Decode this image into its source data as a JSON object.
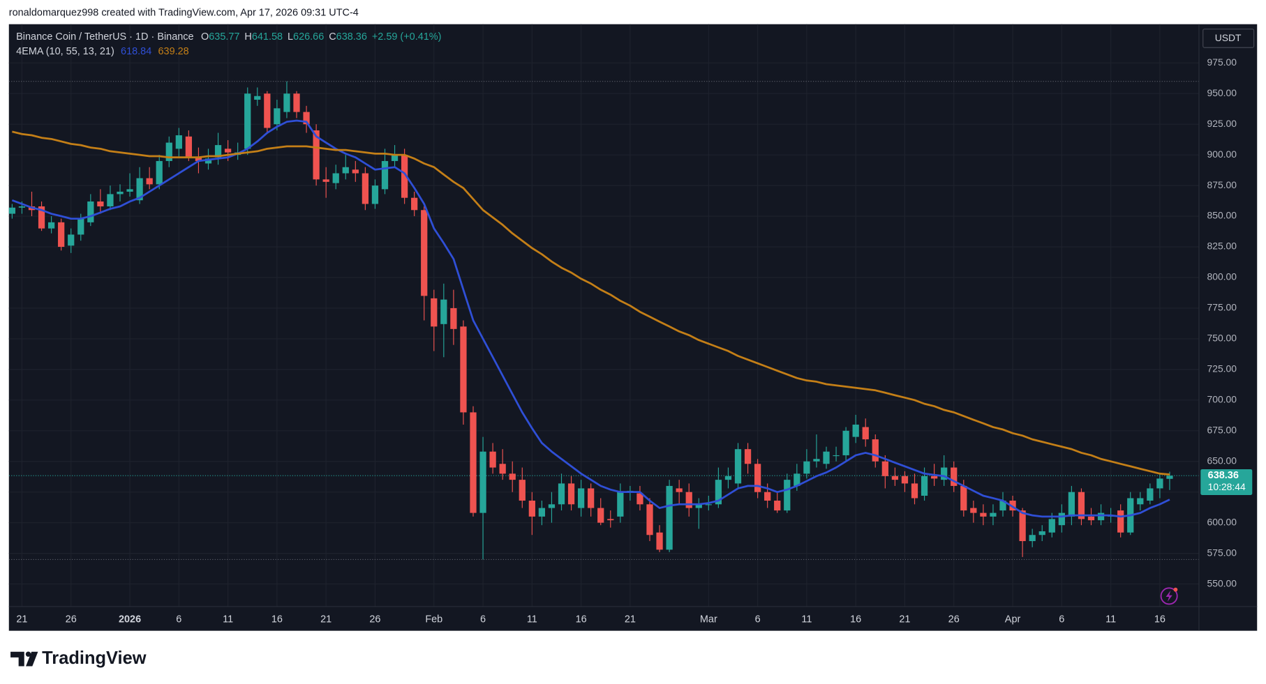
{
  "watermark": "ronaldomarquez998 created with TradingView.com, Apr 17, 2026 09:31 UTC-4",
  "logo": "TradingView",
  "chart_data": {
    "type": "candlestick",
    "title": "Binance Coin / TetherUS · 1D · Binance",
    "ohlc_labels": [
      "O",
      "H",
      "L",
      "C"
    ],
    "change": "+2.59 (+0.41%)",
    "indicator": "4EMA (10, 55, 13, 21)",
    "currency": "USDT",
    "countdown": "10:28:44",
    "up_color": "#26a69a",
    "down_color": "#ef5350",
    "grid": true,
    "ylim": [
      531.6,
      1006.6
    ],
    "yticks": [
      {
        "value": 550,
        "label": "550.00"
      },
      {
        "value": 575,
        "label": "575.00"
      },
      {
        "value": 600,
        "label": "600.00"
      },
      {
        "value": 625,
        "label": "625.00"
      },
      {
        "value": 650,
        "label": "650.00"
      },
      {
        "value": 675,
        "label": "675.00"
      },
      {
        "value": 700,
        "label": "700.00"
      },
      {
        "value": 725,
        "label": "725.00"
      },
      {
        "value": 750,
        "label": "750.00"
      },
      {
        "value": 775,
        "label": "775.00"
      },
      {
        "value": 800,
        "label": "800.00"
      },
      {
        "value": 825,
        "label": "825.00"
      },
      {
        "value": 850,
        "label": "850.00"
      },
      {
        "value": 875,
        "label": "875.00"
      },
      {
        "value": 900,
        "label": "900.00"
      },
      {
        "value": 925,
        "label": "925.00"
      },
      {
        "value": 950,
        "label": "950.00"
      },
      {
        "value": 975,
        "label": "975.00"
      }
    ],
    "categories": [
      null,
      "21",
      null,
      null,
      null,
      null,
      "26",
      null,
      null,
      null,
      null,
      null,
      "2026",
      null,
      null,
      null,
      null,
      "6",
      null,
      null,
      null,
      null,
      "11",
      null,
      null,
      null,
      null,
      "16",
      null,
      null,
      null,
      null,
      "21",
      null,
      null,
      null,
      null,
      "26",
      null,
      null,
      null,
      null,
      null,
      "Feb",
      null,
      null,
      null,
      null,
      "6",
      null,
      null,
      null,
      null,
      "11",
      null,
      null,
      null,
      null,
      "16",
      null,
      null,
      null,
      null,
      "21",
      null,
      null,
      null,
      null,
      null,
      null,
      null,
      "Mar",
      null,
      null,
      null,
      null,
      "6",
      null,
      null,
      null,
      null,
      "11",
      null,
      null,
      null,
      null,
      "16",
      null,
      null,
      null,
      null,
      "21",
      null,
      null,
      null,
      null,
      "26",
      null,
      null,
      null,
      null,
      null,
      "Apr",
      null,
      null,
      null,
      null,
      "6",
      null,
      null,
      null,
      null,
      "11",
      null,
      null,
      null,
      null,
      "16",
      null
    ],
    "ohlc": [
      [
        852,
        860,
        848,
        857
      ],
      [
        857,
        862,
        852,
        858
      ],
      [
        858,
        870,
        850,
        855
      ],
      [
        858,
        862,
        838,
        840
      ],
      [
        840,
        850,
        836,
        845
      ],
      [
        845,
        848,
        822,
        825
      ],
      [
        826,
        840,
        820,
        835
      ],
      [
        835,
        852,
        830,
        848
      ],
      [
        845,
        868,
        842,
        862
      ],
      [
        862,
        872,
        852,
        858
      ],
      [
        858,
        875,
        855,
        868
      ],
      [
        868,
        876,
        862,
        870
      ],
      [
        870,
        885,
        866,
        872
      ],
      [
        863,
        890,
        860,
        881
      ],
      [
        881,
        890,
        872,
        876
      ],
      [
        876,
        900,
        872,
        895
      ],
      [
        895,
        915,
        890,
        910
      ],
      [
        905,
        922,
        898,
        916
      ],
      [
        915,
        920,
        895,
        898
      ],
      [
        898,
        906,
        885,
        895
      ],
      [
        893,
        905,
        888,
        897
      ],
      [
        898,
        918,
        892,
        908
      ],
      [
        905,
        912,
        895,
        902
      ],
      [
        900,
        910,
        896,
        902
      ],
      [
        905,
        955,
        900,
        950
      ],
      [
        945,
        955,
        940,
        948
      ],
      [
        950,
        952,
        918,
        922
      ],
      [
        925,
        945,
        920,
        938
      ],
      [
        935,
        960,
        930,
        950
      ],
      [
        950,
        952,
        930,
        935
      ],
      [
        935,
        940,
        918,
        925
      ],
      [
        920,
        925,
        875,
        880
      ],
      [
        880,
        890,
        865,
        878
      ],
      [
        877,
        892,
        872,
        885
      ],
      [
        885,
        900,
        880,
        890
      ],
      [
        888,
        895,
        878,
        885
      ],
      [
        885,
        890,
        855,
        860
      ],
      [
        860,
        880,
        856,
        875
      ],
      [
        872,
        905,
        868,
        895
      ],
      [
        895,
        908,
        890,
        900
      ],
      [
        900,
        905,
        860,
        865
      ],
      [
        865,
        870,
        850,
        855
      ],
      [
        855,
        858,
        765,
        785
      ],
      [
        783,
        790,
        740,
        760
      ],
      [
        762,
        795,
        735,
        782
      ],
      [
        775,
        790,
        745,
        758
      ],
      [
        760,
        765,
        680,
        690
      ],
      [
        690,
        695,
        605,
        608
      ],
      [
        608,
        670,
        570,
        658
      ],
      [
        658,
        665,
        640,
        645
      ],
      [
        648,
        660,
        635,
        640
      ],
      [
        640,
        650,
        625,
        635
      ],
      [
        635,
        645,
        612,
        618
      ],
      [
        618,
        625,
        590,
        605
      ],
      [
        605,
        618,
        598,
        612
      ],
      [
        612,
        625,
        600,
        615
      ],
      [
        615,
        640,
        610,
        632
      ],
      [
        632,
        638,
        610,
        615
      ],
      [
        612,
        635,
        605,
        628
      ],
      [
        628,
        632,
        605,
        612
      ],
      [
        612,
        620,
        598,
        600
      ],
      [
        603,
        610,
        596,
        602
      ],
      [
        605,
        632,
        600,
        625
      ],
      [
        625,
        630,
        618,
        626
      ],
      [
        624,
        630,
        610,
        615
      ],
      [
        615,
        620,
        585,
        590
      ],
      [
        592,
        598,
        576,
        578
      ],
      [
        578,
        635,
        576,
        630
      ],
      [
        628,
        635,
        615,
        625
      ],
      [
        625,
        632,
        605,
        612
      ],
      [
        612,
        620,
        595,
        615
      ],
      [
        615,
        622,
        610,
        615
      ],
      [
        615,
        645,
        612,
        635
      ],
      [
        635,
        645,
        628,
        638
      ],
      [
        632,
        665,
        628,
        660
      ],
      [
        660,
        665,
        640,
        648
      ],
      [
        648,
        652,
        620,
        625
      ],
      [
        625,
        632,
        612,
        618
      ],
      [
        618,
        625,
        608,
        610
      ],
      [
        610,
        640,
        608,
        635
      ],
      [
        630,
        648,
        626,
        640
      ],
      [
        640,
        660,
        636,
        650
      ],
      [
        650,
        672,
        645,
        652
      ],
      [
        648,
        662,
        644,
        658
      ],
      [
        655,
        662,
        650,
        655
      ],
      [
        655,
        678,
        650,
        675
      ],
      [
        670,
        688,
        665,
        680
      ],
      [
        678,
        685,
        662,
        668
      ],
      [
        668,
        672,
        645,
        650
      ],
      [
        650,
        655,
        628,
        638
      ],
      [
        638,
        645,
        630,
        635
      ],
      [
        638,
        642,
        625,
        632
      ],
      [
        632,
        640,
        615,
        620
      ],
      [
        622,
        645,
        618,
        638
      ],
      [
        638,
        648,
        630,
        636
      ],
      [
        635,
        655,
        630,
        645
      ],
      [
        645,
        650,
        625,
        630
      ],
      [
        630,
        635,
        605,
        610
      ],
      [
        612,
        618,
        600,
        608
      ],
      [
        608,
        615,
        598,
        605
      ],
      [
        605,
        615,
        598,
        608
      ],
      [
        610,
        625,
        605,
        618
      ],
      [
        618,
        622,
        605,
        610
      ],
      [
        610,
        612,
        572,
        585
      ],
      [
        585,
        595,
        580,
        590
      ],
      [
        590,
        598,
        585,
        593
      ],
      [
        592,
        608,
        588,
        603
      ],
      [
        598,
        615,
        592,
        608
      ],
      [
        605,
        630,
        598,
        625
      ],
      [
        625,
        628,
        598,
        603
      ],
      [
        605,
        612,
        598,
        602
      ],
      [
        602,
        615,
        598,
        608
      ],
      [
        605,
        612,
        600,
        606
      ],
      [
        610,
        615,
        588,
        592
      ],
      [
        592,
        625,
        590,
        620
      ],
      [
        615,
        625,
        610,
        620
      ],
      [
        618,
        632,
        615,
        628
      ],
      [
        628,
        640,
        620,
        636
      ],
      [
        635.77,
        641.58,
        626.66,
        638.36
      ]
    ],
    "series": [
      {
        "color": "#2f4fd6",
        "values": [
          863,
          860,
          857,
          855,
          852,
          850,
          848,
          848,
          850,
          853,
          856,
          858,
          862,
          865,
          870,
          875,
          880,
          885,
          890,
          895,
          896,
          897,
          898,
          901,
          905,
          911,
          918,
          923,
          927,
          928,
          927,
          915,
          910,
          905,
          901,
          898,
          893,
          888,
          889,
          890,
          885,
          873,
          860,
          840,
          828,
          815,
          790,
          765,
          750,
          735,
          720,
          705,
          690,
          677,
          665,
          658,
          652,
          646,
          640,
          635,
          630,
          627,
          625,
          625,
          625,
          618,
          612,
          614,
          615,
          615,
          615,
          616,
          618,
          623,
          628,
          630,
          630,
          628,
          625,
          627,
          630,
          634,
          638,
          641,
          645,
          650,
          655,
          657,
          655,
          652,
          649,
          646,
          643,
          640,
          639,
          638,
          634,
          630,
          626,
          622,
          620,
          618,
          613,
          608,
          606,
          605,
          605,
          605,
          606,
          606,
          606,
          606,
          606,
          605,
          606,
          608,
          612,
          615,
          618.84
        ]
      },
      {
        "color": "#c47f17",
        "values": [
          919,
          917,
          916,
          914,
          913,
          911,
          909,
          908,
          906,
          905,
          903,
          902,
          901,
          900,
          899,
          899,
          898,
          898,
          898,
          898,
          899,
          899,
          900,
          901,
          902,
          903,
          905,
          906,
          907,
          907,
          907,
          906,
          905,
          904,
          904,
          903,
          902,
          901,
          901,
          900,
          900,
          897,
          893,
          890,
          884,
          878,
          873,
          864,
          855,
          849,
          843,
          836,
          830,
          824,
          819,
          813,
          808,
          804,
          799,
          795,
          790,
          786,
          781,
          777,
          772,
          768,
          764,
          760,
          756,
          753,
          749,
          746,
          743,
          740,
          736,
          733,
          730,
          727,
          724,
          721,
          718,
          716,
          715,
          713,
          712,
          711,
          710,
          709,
          708,
          706,
          704,
          702,
          700,
          697,
          695,
          692,
          690,
          687,
          684,
          681,
          678,
          676,
          673,
          671,
          668,
          666,
          664,
          662,
          660,
          657,
          655,
          652,
          650,
          648,
          646,
          644,
          642,
          640,
          639.28
        ]
      }
    ]
  }
}
